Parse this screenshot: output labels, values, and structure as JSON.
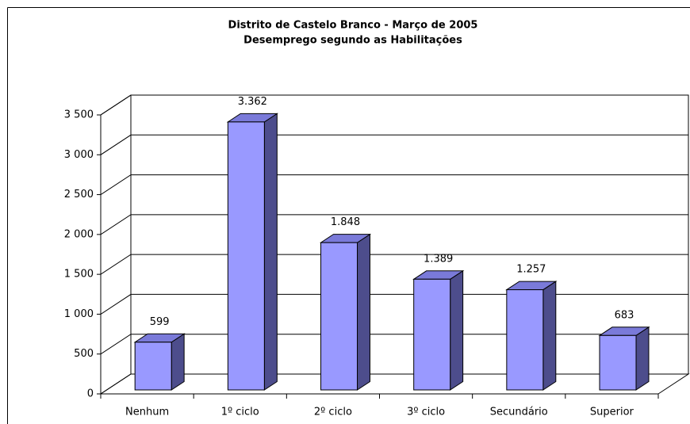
{
  "chart_data": {
    "type": "bar3d",
    "title": "Distrito de Castelo Branco - Março de 2005",
    "subtitle": "Desemprego segundo as Habilitações",
    "categories": [
      "Nenhum",
      "1º ciclo",
      "2º ciclo",
      "3º ciclo",
      "Secundário",
      "Superior"
    ],
    "values": [
      599,
      3362,
      1848,
      1389,
      1257,
      683
    ],
    "value_labels": [
      "599",
      "3.362",
      "1.848",
      "1.389",
      "1.257",
      "683"
    ],
    "colors": {
      "front": "#9999ff",
      "side": "#4d4d8c",
      "top": "#7a7ad9"
    },
    "ylim": [
      0,
      3500
    ],
    "yticks": [
      0,
      500,
      {
        "value": 1000,
        "label": "1 000"
      },
      {
        "value": 1500,
        "label": "1 500"
      },
      {
        "value": 2000,
        "label": "2 000"
      },
      {
        "value": 2500,
        "label": "2 500"
      },
      {
        "value": 3000,
        "label": "3 000"
      },
      {
        "value": 3500,
        "label": "3 500"
      }
    ],
    "grid": true
  }
}
